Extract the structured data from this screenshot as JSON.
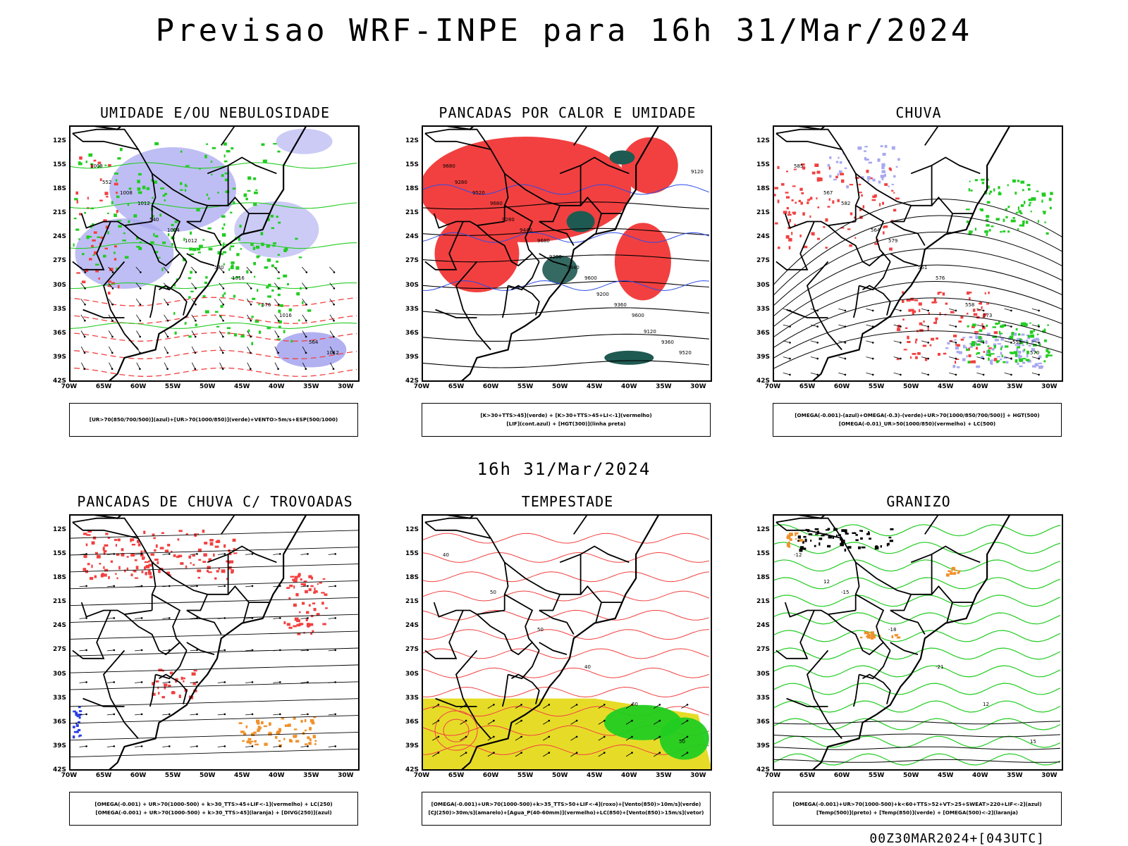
{
  "title": "Previsao WRF-INPE  para 16h 31/Mar/2024",
  "subtitle": "16h 31/Mar/2024",
  "footer": "00Z30MAR2024+[043UTC]",
  "lat_labels": [
    "12S",
    "15S",
    "18S",
    "21S",
    "24S",
    "27S",
    "30S",
    "33S",
    "36S",
    "39S",
    "42S"
  ],
  "lon_labels": [
    "70W",
    "65W",
    "60W",
    "55W",
    "50W",
    "45W",
    "40W",
    "35W",
    "30W"
  ],
  "colors": {
    "blue": "#a8a8f0",
    "green": "#22cc22",
    "red": "#f24040",
    "darkgreen": "#1f5a52",
    "yellow": "#e6dc28",
    "orange": "#f0902a"
  },
  "panels": [
    {
      "id": "umidade",
      "title": "UMIDADE E/OU NEBULOSIDADE",
      "legend": [
        "[UR>70(850/700/500)](azul)+[UR>70(1000/850)](verde)+VENTO>5m/s+ESP(500/1000)"
      ],
      "contour_labels": [
        "1008",
        "1012",
        "1012",
        "1016",
        "1016",
        "1012",
        "1008",
        "1004",
        "570",
        "576",
        "564",
        "552",
        "540"
      ]
    },
    {
      "id": "pancadas-calor",
      "title": "PANCADAS POR CALOR E UMIDADE",
      "legend": [
        "[K>30+TTS>45](verde) + [K>30+TTS>45+LI<-1](vermelho)",
        "[LIF](cont.azul) + [HGT(300)](linha preta)"
      ],
      "contour_labels": [
        "9680",
        "9680",
        "9680",
        "9600",
        "9600",
        "9520",
        "9520",
        "9440",
        "9440",
        "9360",
        "9360",
        "9280",
        "9280",
        "9200",
        "9200",
        "9120",
        "9120"
      ]
    },
    {
      "id": "chuva",
      "title": "CHUVA",
      "legend": [
        "[OMEGA(-0.001)-(azul)+OMEGA(-0.3)-(verde)+UR>70(1000/850/700/500)] + HGT(500)",
        "[OMEGA(-0.01)_UR>50(1000/850)(vermelho) + LC(500)"
      ],
      "contour_labels": [
        "585",
        "582",
        "579",
        "576",
        "573",
        "570",
        "567",
        "564",
        "561",
        "558",
        "555"
      ]
    },
    {
      "id": "pancadas-trovoadas",
      "title": "PANCADAS DE CHUVA C/ TROVOADAS",
      "legend": [
        "[OMEGA(-0.001) + UR>70(1000-500) + k>30_TTS>45+LIF<-1](vermelho) + LC(250)",
        "[OMEGA(-0.001) + UR>70(1000-500) + k>30_TTS>45](laranja) + [DIVG(250)](azul)"
      ],
      "contour_labels": []
    },
    {
      "id": "tempestade",
      "title": "TEMPESTADE",
      "legend": [
        "[OMEGA(-0.001)+UR>70(1000-500)+k>35_TTS>50+LIF<-4](roxo)+[Vento(850)>10m/s](verde)",
        "[CJ(250)>30m/s](amarelo)+[Agua_P(40-60mm)](vermelho)+LC(850)+[Vento(850)>15m/s](vetor)"
      ],
      "contour_labels": [
        "40",
        "50",
        "50",
        "40",
        "60",
        "50"
      ]
    },
    {
      "id": "granizo",
      "title": "GRANIZO",
      "legend": [
        "[OMEGA(-0.001)+UR>70(1000-500)+k<60+TTS>52+VT>25+SWEAT>220+LIF<-2](azul)",
        "[Temp(500)](preto) + [Temp(850)](verde) + [OMEGA(500)<-2](laranja)"
      ],
      "contour_labels": [
        "-12",
        "-15",
        "-18",
        "-21",
        "12",
        "15",
        "12"
      ]
    }
  ]
}
